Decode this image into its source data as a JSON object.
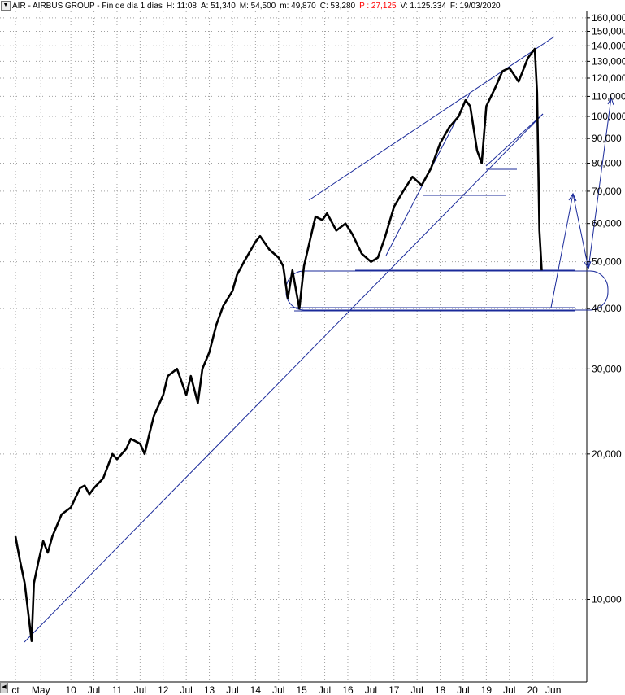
{
  "header": {
    "menu_glyph": "▼",
    "symbol": "AIR - AIRBUS GROUP - Fin de día 1 días",
    "high": "H: 11:08",
    "ask": "A: 51,340",
    "max": "M: 54,500",
    "min": "m: 49,870",
    "close": "C: 53,280",
    "change": "P : 27,125",
    "volume": "V: 1.125.334",
    "date": "F: 19/03/2020"
  },
  "colors": {
    "price": "#000000",
    "annotation": "#1a2a9a",
    "grid": "#a0a0a0",
    "change_negative": "#ff0000"
  },
  "chart_data": {
    "type": "line",
    "scale": "log",
    "ylim": [
      8000,
      165000
    ],
    "y_ticks": [
      "160,000",
      "150,000",
      "140,000",
      "130,000",
      "120,000",
      "110,000",
      "100,000",
      "90,000",
      "80,000",
      "70,000",
      "60,000",
      "50,000",
      "40,000",
      "30,000",
      "20,000",
      "10,000"
    ],
    "y_tick_values": [
      160000,
      150000,
      140000,
      130000,
      120000,
      110000,
      100000,
      90000,
      80000,
      70000,
      60000,
      50000,
      40000,
      30000,
      20000,
      10000
    ],
    "x_ticks": [
      "ct",
      "May",
      "10",
      "Jul",
      "11",
      "Jul",
      "12",
      "Jul",
      "13",
      "Jul",
      "14",
      "Jul",
      "15",
      "Jul",
      "16",
      "Jul",
      "17",
      "Jul",
      "18",
      "Jul",
      "19",
      "Jul",
      "20",
      "Jun"
    ],
    "x_tick_dates": [
      2008.8,
      2009.35,
      2010.0,
      2010.5,
      2011.0,
      2011.5,
      2012.0,
      2012.5,
      2013.0,
      2013.5,
      2014.0,
      2014.5,
      2015.0,
      2015.5,
      2016.0,
      2016.5,
      2017.0,
      2017.5,
      2018.0,
      2018.5,
      2019.0,
      2019.5,
      2020.0,
      2020.45
    ],
    "grid": true,
    "series": [
      {
        "x": [
          2008.8,
          2008.9,
          2009.0,
          2009.1,
          2009.15,
          2009.2,
          2009.3,
          2009.4,
          2009.5,
          2009.6,
          2009.8,
          2010.0,
          2010.2,
          2010.3,
          2010.4,
          2010.5,
          2010.7,
          2010.9,
          2011.0,
          2011.2,
          2011.3,
          2011.5,
          2011.6,
          2011.7,
          2011.8,
          2012.0,
          2012.1,
          2012.3,
          2012.5,
          2012.6,
          2012.75,
          2012.85,
          2013.0,
          2013.15,
          2013.3,
          2013.5,
          2013.6,
          2013.75,
          2014.0,
          2014.1,
          2014.3,
          2014.5,
          2014.6,
          2014.7,
          2014.8,
          2014.95,
          2015.05,
          2015.3,
          2015.45,
          2015.55,
          2015.75,
          2015.95,
          2016.1,
          2016.3,
          2016.5,
          2016.65,
          2016.8,
          2017.0,
          2017.2,
          2017.4,
          2017.6,
          2017.8,
          2018.0,
          2018.2,
          2018.4,
          2018.55,
          2018.65,
          2018.8,
          2018.9,
          2019.0,
          2019.2,
          2019.35,
          2019.5,
          2019.7,
          2019.9,
          2020.05,
          2020.1,
          2020.15,
          2020.2
        ],
        "y": [
          13500,
          12000,
          10800,
          9000,
          8200,
          10800,
          12000,
          13200,
          12500,
          13500,
          15000,
          15500,
          17000,
          17200,
          16500,
          17000,
          17800,
          20000,
          19500,
          20500,
          21500,
          21000,
          20000,
          22000,
          24000,
          26500,
          29000,
          30000,
          26500,
          29000,
          25500,
          30000,
          32500,
          37000,
          40500,
          43500,
          47000,
          50000,
          55000,
          56500,
          53000,
          51000,
          49000,
          42000,
          48000,
          40000,
          49000,
          62000,
          61000,
          63000,
          58000,
          60000,
          57000,
          52000,
          50000,
          51000,
          56000,
          65000,
          70000,
          75000,
          72000,
          78000,
          88000,
          95000,
          100000,
          108000,
          105000,
          85000,
          80000,
          105000,
          115000,
          124000,
          126000,
          118000,
          132000,
          138000,
          112000,
          58000,
          48000
        ]
      }
    ]
  }
}
